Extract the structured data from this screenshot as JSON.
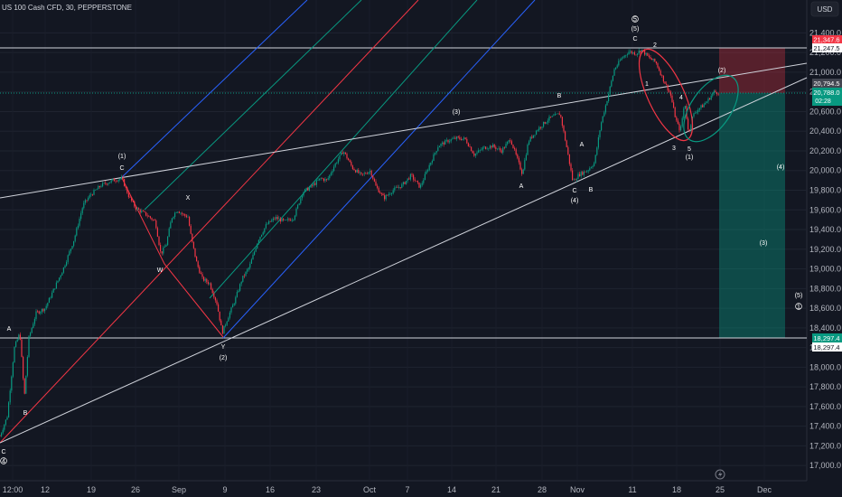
{
  "header": {
    "title": "US 100 Cash CFD, 30, PEPPERSTONE",
    "currency": "USD"
  },
  "chart_data": {
    "type": "candlestick",
    "y_range": [
      16900,
      21600
    ],
    "y_ticks": [
      17000,
      17200,
      17400,
      17600,
      17800,
      18000,
      18200,
      18400,
      18600,
      18800,
      19000,
      19200,
      19400,
      19600,
      19800,
      20000,
      20200,
      20400,
      20600,
      20800,
      21000,
      21200,
      21400
    ],
    "y_tick_labels": [
      "17,000.0",
      "17,200.0",
      "17,400.0",
      "17,600.0",
      "17,800.0",
      "18,000.0",
      "18,200.0",
      "18,400.0",
      "18,600.0",
      "18,800.0",
      "19,000.0",
      "19,200.0",
      "19,400.0",
      "19,600.0",
      "19,800.0",
      "20,000.0",
      "20,200.0",
      "20,400.0",
      "20,600.0",
      "20,800.0",
      "21,000.0",
      "21,200.0",
      "21,400.0"
    ],
    "x_labels": [
      "12:00",
      "12",
      "19",
      "26",
      "Sep",
      "9",
      "16",
      "23",
      "Oct",
      "7",
      "14",
      "21",
      "28",
      "Nov",
      "11",
      "18",
      "25",
      "Dec"
    ],
    "x_label_pos": [
      14,
      50,
      101,
      150,
      198,
      249,
      299,
      350,
      409,
      451,
      500,
      549,
      600,
      639,
      700,
      749,
      797,
      846
    ],
    "path_points": [
      [
        0,
        17300
      ],
      [
        8,
        17500
      ],
      [
        16,
        18200
      ],
      [
        22,
        18350
      ],
      [
        27,
        17700
      ],
      [
        32,
        18300
      ],
      [
        40,
        18550
      ],
      [
        50,
        18600
      ],
      [
        60,
        18800
      ],
      [
        70,
        19000
      ],
      [
        82,
        19300
      ],
      [
        92,
        19650
      ],
      [
        100,
        19750
      ],
      [
        112,
        19850
      ],
      [
        125,
        19900
      ],
      [
        135,
        19920
      ],
      [
        142,
        19750
      ],
      [
        150,
        19620
      ],
      [
        162,
        19550
      ],
      [
        172,
        19480
      ],
      [
        178,
        19150
      ],
      [
        184,
        19250
      ],
      [
        190,
        19520
      ],
      [
        196,
        19600
      ],
      [
        203,
        19550
      ],
      [
        208,
        19530
      ],
      [
        212,
        19300
      ],
      [
        218,
        19050
      ],
      [
        224,
        18900
      ],
      [
        232,
        18850
      ],
      [
        240,
        18650
      ],
      [
        246,
        18350
      ],
      [
        252,
        18500
      ],
      [
        260,
        18680
      ],
      [
        268,
        18900
      ],
      [
        276,
        19020
      ],
      [
        286,
        19300
      ],
      [
        295,
        19450
      ],
      [
        305,
        19520
      ],
      [
        315,
        19480
      ],
      [
        325,
        19520
      ],
      [
        335,
        19780
      ],
      [
        345,
        19840
      ],
      [
        355,
        19920
      ],
      [
        362,
        19900
      ],
      [
        370,
        20050
      ],
      [
        380,
        20200
      ],
      [
        390,
        20030
      ],
      [
        400,
        19950
      ],
      [
        410,
        20000
      ],
      [
        416,
        19840
      ],
      [
        425,
        19720
      ],
      [
        435,
        19800
      ],
      [
        445,
        19850
      ],
      [
        455,
        19950
      ],
      [
        465,
        19830
      ],
      [
        475,
        20050
      ],
      [
        485,
        20250
      ],
      [
        495,
        20300
      ],
      [
        505,
        20330
      ],
      [
        515,
        20320
      ],
      [
        525,
        20160
      ],
      [
        535,
        20230
      ],
      [
        545,
        20250
      ],
      [
        555,
        20200
      ],
      [
        565,
        20320
      ],
      [
        578,
        19970
      ],
      [
        585,
        20300
      ],
      [
        595,
        20420
      ],
      [
        608,
        20530
      ],
      [
        620,
        20580
      ],
      [
        628,
        20200
      ],
      [
        634,
        19890
      ],
      [
        641,
        19960
      ],
      [
        650,
        20000
      ],
      [
        658,
        20080
      ],
      [
        665,
        20470
      ],
      [
        672,
        20720
      ],
      [
        680,
        21030
      ],
      [
        688,
        21140
      ],
      [
        696,
        21210
      ],
      [
        704,
        21190
      ],
      [
        710,
        21230
      ],
      [
        718,
        21150
      ],
      [
        726,
        21100
      ],
      [
        734,
        20930
      ],
      [
        742,
        20780
      ],
      [
        748,
        20520
      ],
      [
        753,
        20400
      ],
      [
        758,
        20700
      ],
      [
        762,
        20380
      ],
      [
        767,
        20560
      ],
      [
        772,
        20620
      ],
      [
        778,
        20660
      ],
      [
        784,
        20720
      ],
      [
        790,
        20800
      ],
      [
        796,
        20790
      ]
    ]
  },
  "price_labels": {
    "red_top": "21,347.6",
    "white_top": "21,247.5",
    "grey": "20,794.5",
    "green_current": "20,788.0",
    "countdown": "02:28",
    "green_bottom": "18,297.4",
    "white_bottom": "18,297.4"
  },
  "wave_labels": [
    "A",
    "B",
    "C",
    "(1)",
    "C",
    "X",
    "W",
    "Y",
    "(2)",
    "(3)",
    "B",
    "A",
    "A",
    "C",
    "B",
    "(4)",
    "C",
    "(5)",
    "1",
    "2",
    "3",
    "4",
    "5",
    "(1)",
    "(2)",
    "(4)",
    "(3)",
    "(5)"
  ],
  "colors": {
    "bg": "#131722",
    "up": "#089981",
    "down": "#f23645",
    "channel": [
      "#2962ff",
      "#089981",
      "#f23645"
    ]
  }
}
